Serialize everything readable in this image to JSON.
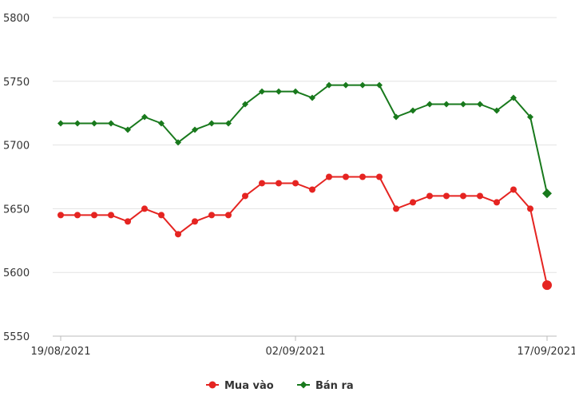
{
  "chart_data": {
    "type": "line",
    "title": "",
    "xlabel": "",
    "ylabel": "",
    "ylim": [
      5550,
      5800
    ],
    "y_ticks": [
      "5800",
      "5750",
      "5700",
      "5650",
      "5600",
      "5550"
    ],
    "x_tick_labels": [
      {
        "index": 0,
        "label": "19/08/2021"
      },
      {
        "index": 14,
        "label": "02/09/2021"
      },
      {
        "index": 29,
        "label": "17/09/2021"
      }
    ],
    "grid": "horizontal",
    "legend_position": "bottom-center",
    "series": [
      {
        "name": "Mua vào",
        "color": "#e52421",
        "marker": "circle",
        "values": [
          5645,
          5645,
          5645,
          5645,
          5640,
          5650,
          5645,
          5630,
          5640,
          5645,
          5645,
          5660,
          5670,
          5670,
          5670,
          5665,
          5675,
          5675,
          5675,
          5675,
          5650,
          5655,
          5660,
          5660,
          5660,
          5660,
          5655,
          5665,
          5650,
          5590
        ]
      },
      {
        "name": "Bán ra",
        "color": "#18791c",
        "marker": "diamond",
        "values": [
          5717,
          5717,
          5717,
          5717,
          5712,
          5722,
          5717,
          5702,
          5712,
          5717,
          5717,
          5732,
          5742,
          5742,
          5742,
          5737,
          5747,
          5747,
          5747,
          5747,
          5722,
          5727,
          5732,
          5732,
          5732,
          5732,
          5727,
          5737,
          5722,
          5662
        ]
      }
    ]
  }
}
